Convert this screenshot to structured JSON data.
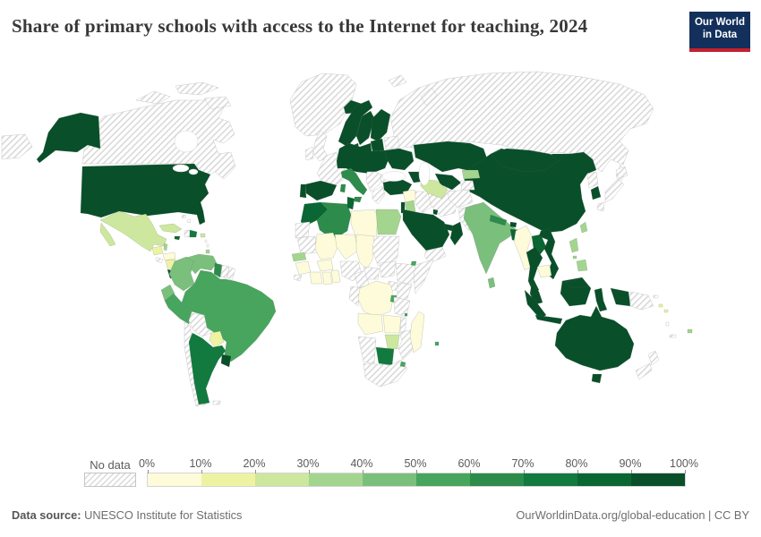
{
  "header": {
    "title": "Share of primary schools with access to the Internet for teaching, 2024",
    "logo": {
      "line1": "Our World",
      "line2": "in Data",
      "bg_color": "#12305b",
      "accent_color": "#c4212e"
    }
  },
  "legend": {
    "no_data_label": "No data",
    "tick_labels": [
      "0%",
      "10%",
      "20%",
      "30%",
      "40%",
      "50%",
      "60%",
      "70%",
      "80%",
      "90%",
      "100%"
    ],
    "scale_colors": [
      "#fdfbd9",
      "#eef3a4",
      "#cde79e",
      "#a4d58f",
      "#7bbf7d",
      "#47a55e",
      "#2d8b4c",
      "#12793f",
      "#0a6632",
      "#094f2a"
    ],
    "no_data_stripe_color": "#d9d9d9",
    "country_border_color": "#c9c9c9"
  },
  "footer": {
    "source_label": "Data source:",
    "source_text": "UNESCO Institute for Statistics",
    "right_text": "OurWorldinData.org/global-education | CC BY"
  },
  "chart_data": {
    "type": "choropleth",
    "title": "Share of primary schools with access to the Internet for teaching",
    "year": "2024",
    "unit": "% of primary schools",
    "bucket_labels": [
      "0-10%",
      "10-20%",
      "20-30%",
      "30-40%",
      "40-50%",
      "50-60%",
      "60-70%",
      "70-80%",
      "80-90%",
      "90-100%"
    ],
    "no_data_label": "No data",
    "country_buckets": {
      "united-states": "90-100%",
      "canada": "No data",
      "greenland": "No data",
      "iceland": "90-100%",
      "mexico": "20-30%",
      "guatemala": "10-20%",
      "belize": "30-40%",
      "el-salvador": "No data",
      "honduras": "0-10%",
      "nicaragua": "10-20%",
      "costa-rica": "90-100%",
      "panama": "50-60%",
      "cuba": "20-30%",
      "jamaica": "80-90%",
      "haiti": "No data",
      "dominican-republic": "70-80%",
      "puerto-rico": "20-30%",
      "bahamas": "No data",
      "lesser-antilles": "No data",
      "trinidad-and-tobago": "30-40%",
      "colombia": "40-50%",
      "venezuela": "40-50%",
      "guyana": "60-70%",
      "suriname": "No data",
      "french-guiana": "No data",
      "ecuador": "40-50%",
      "peru": "50-60%",
      "brazil": "50-60%",
      "bolivia": "No data",
      "paraguay": "10-20%",
      "chile": "No data",
      "argentina": "70-80%",
      "uruguay": "90-100%",
      "falkland-islands": "No data",
      "united-kingdom": "No data",
      "ireland": "No data",
      "france": "No data",
      "spain": "90-100%",
      "portugal": "90-100%",
      "norway": "90-100%",
      "sweden": "90-100%",
      "finland": "90-100%",
      "denmark": "90-100%",
      "baltic-states": "90-100%",
      "belarus": "No data",
      "central-europe-region": "90-100%",
      "italy": "60-70%",
      "balkans-region": "No data",
      "bulgaria": "No data",
      "greece": "No data",
      "ukraine": "90-100%",
      "russia": "No data",
      "svalbard": "No data",
      "turkey": "90-100%",
      "caucasus-region": "90-100%",
      "syria": "0-10%",
      "israel": "90-100%",
      "jordan": "30-40%",
      "iraq": "No data",
      "iran": "No data",
      "saudi-arabia": "90-100%",
      "kuwait": "90-100%",
      "united-arab-emirates": "90-100%",
      "oman": "90-100%",
      "yemen": "No data",
      "kazakhstan": "90-100%",
      "uzbekistan": "90-100%",
      "turkmenistan": "20-30%",
      "kyrgyzstan": "30-40%",
      "tajikistan": "No data",
      "afghanistan": "No data",
      "pakistan": "No data",
      "morocco": "80-90%",
      "western-sahara": "No data",
      "algeria": "60-70%",
      "tunisia": "80-90%",
      "libya": "0-10%",
      "egypt": "30-40%",
      "mauritania": "No data",
      "mali": "0-10%",
      "senegal": "30-40%",
      "guinea": "0-10%",
      "sierra-leone": "No data",
      "ivory-coast": "0-10%",
      "ghana": "0-10%",
      "togo-benin-region": "0-10%",
      "burkina-faso": "0-10%",
      "niger": "0-10%",
      "nigeria": "No data",
      "chad": "0-10%",
      "sudan": "No data",
      "cameroon": "No data",
      "central-african-republic": "No data",
      "south-sudan": "No data",
      "ethiopia": "No data",
      "djibouti": "50-60%",
      "somalia": "No data",
      "kenya": "No data",
      "uganda": "No data",
      "gabon-congo-region": "No data",
      "democratic-republic-of-congo": "0-10%",
      "rwanda-burundi-region": "50-60%",
      "tanzania": "No data",
      "angola": "0-10%",
      "zambia": "0-10%",
      "malawi": "No data",
      "mozambique": "No data",
      "zimbabwe": "20-30%",
      "botswana": "70-80%",
      "namibia": "No data",
      "south-africa": "No data",
      "eswatini": "50-60%",
      "madagascar": "0-10%",
      "comoros": "50-60%",
      "mauritius": "50-60%",
      "china": "90-100%",
      "mongolia": "90-100%",
      "india": "40-50%",
      "nepal": "60-70%",
      "bhutan": "90-100%",
      "bangladesh": "80-90%",
      "sri-lanka": "40-50%",
      "myanmar": "0-10%",
      "laos": "80-90%",
      "thailand": "90-100%",
      "cambodia": "0-10%",
      "vietnam": "90-100%",
      "malaysia": "90-100%",
      "indonesia": "90-100%",
      "philippines": "30-40%",
      "taiwan": "30-40%",
      "north-korea": "No data",
      "south-korea": "90-100%",
      "japan": "No data",
      "papua-new-guinea": "No data",
      "solomon-islands": "10-20%",
      "vanuatu": "No data",
      "new-caledonia": "No data",
      "fiji": "30-40%",
      "australia": "90-100%",
      "new-zealand": "No data"
    }
  }
}
